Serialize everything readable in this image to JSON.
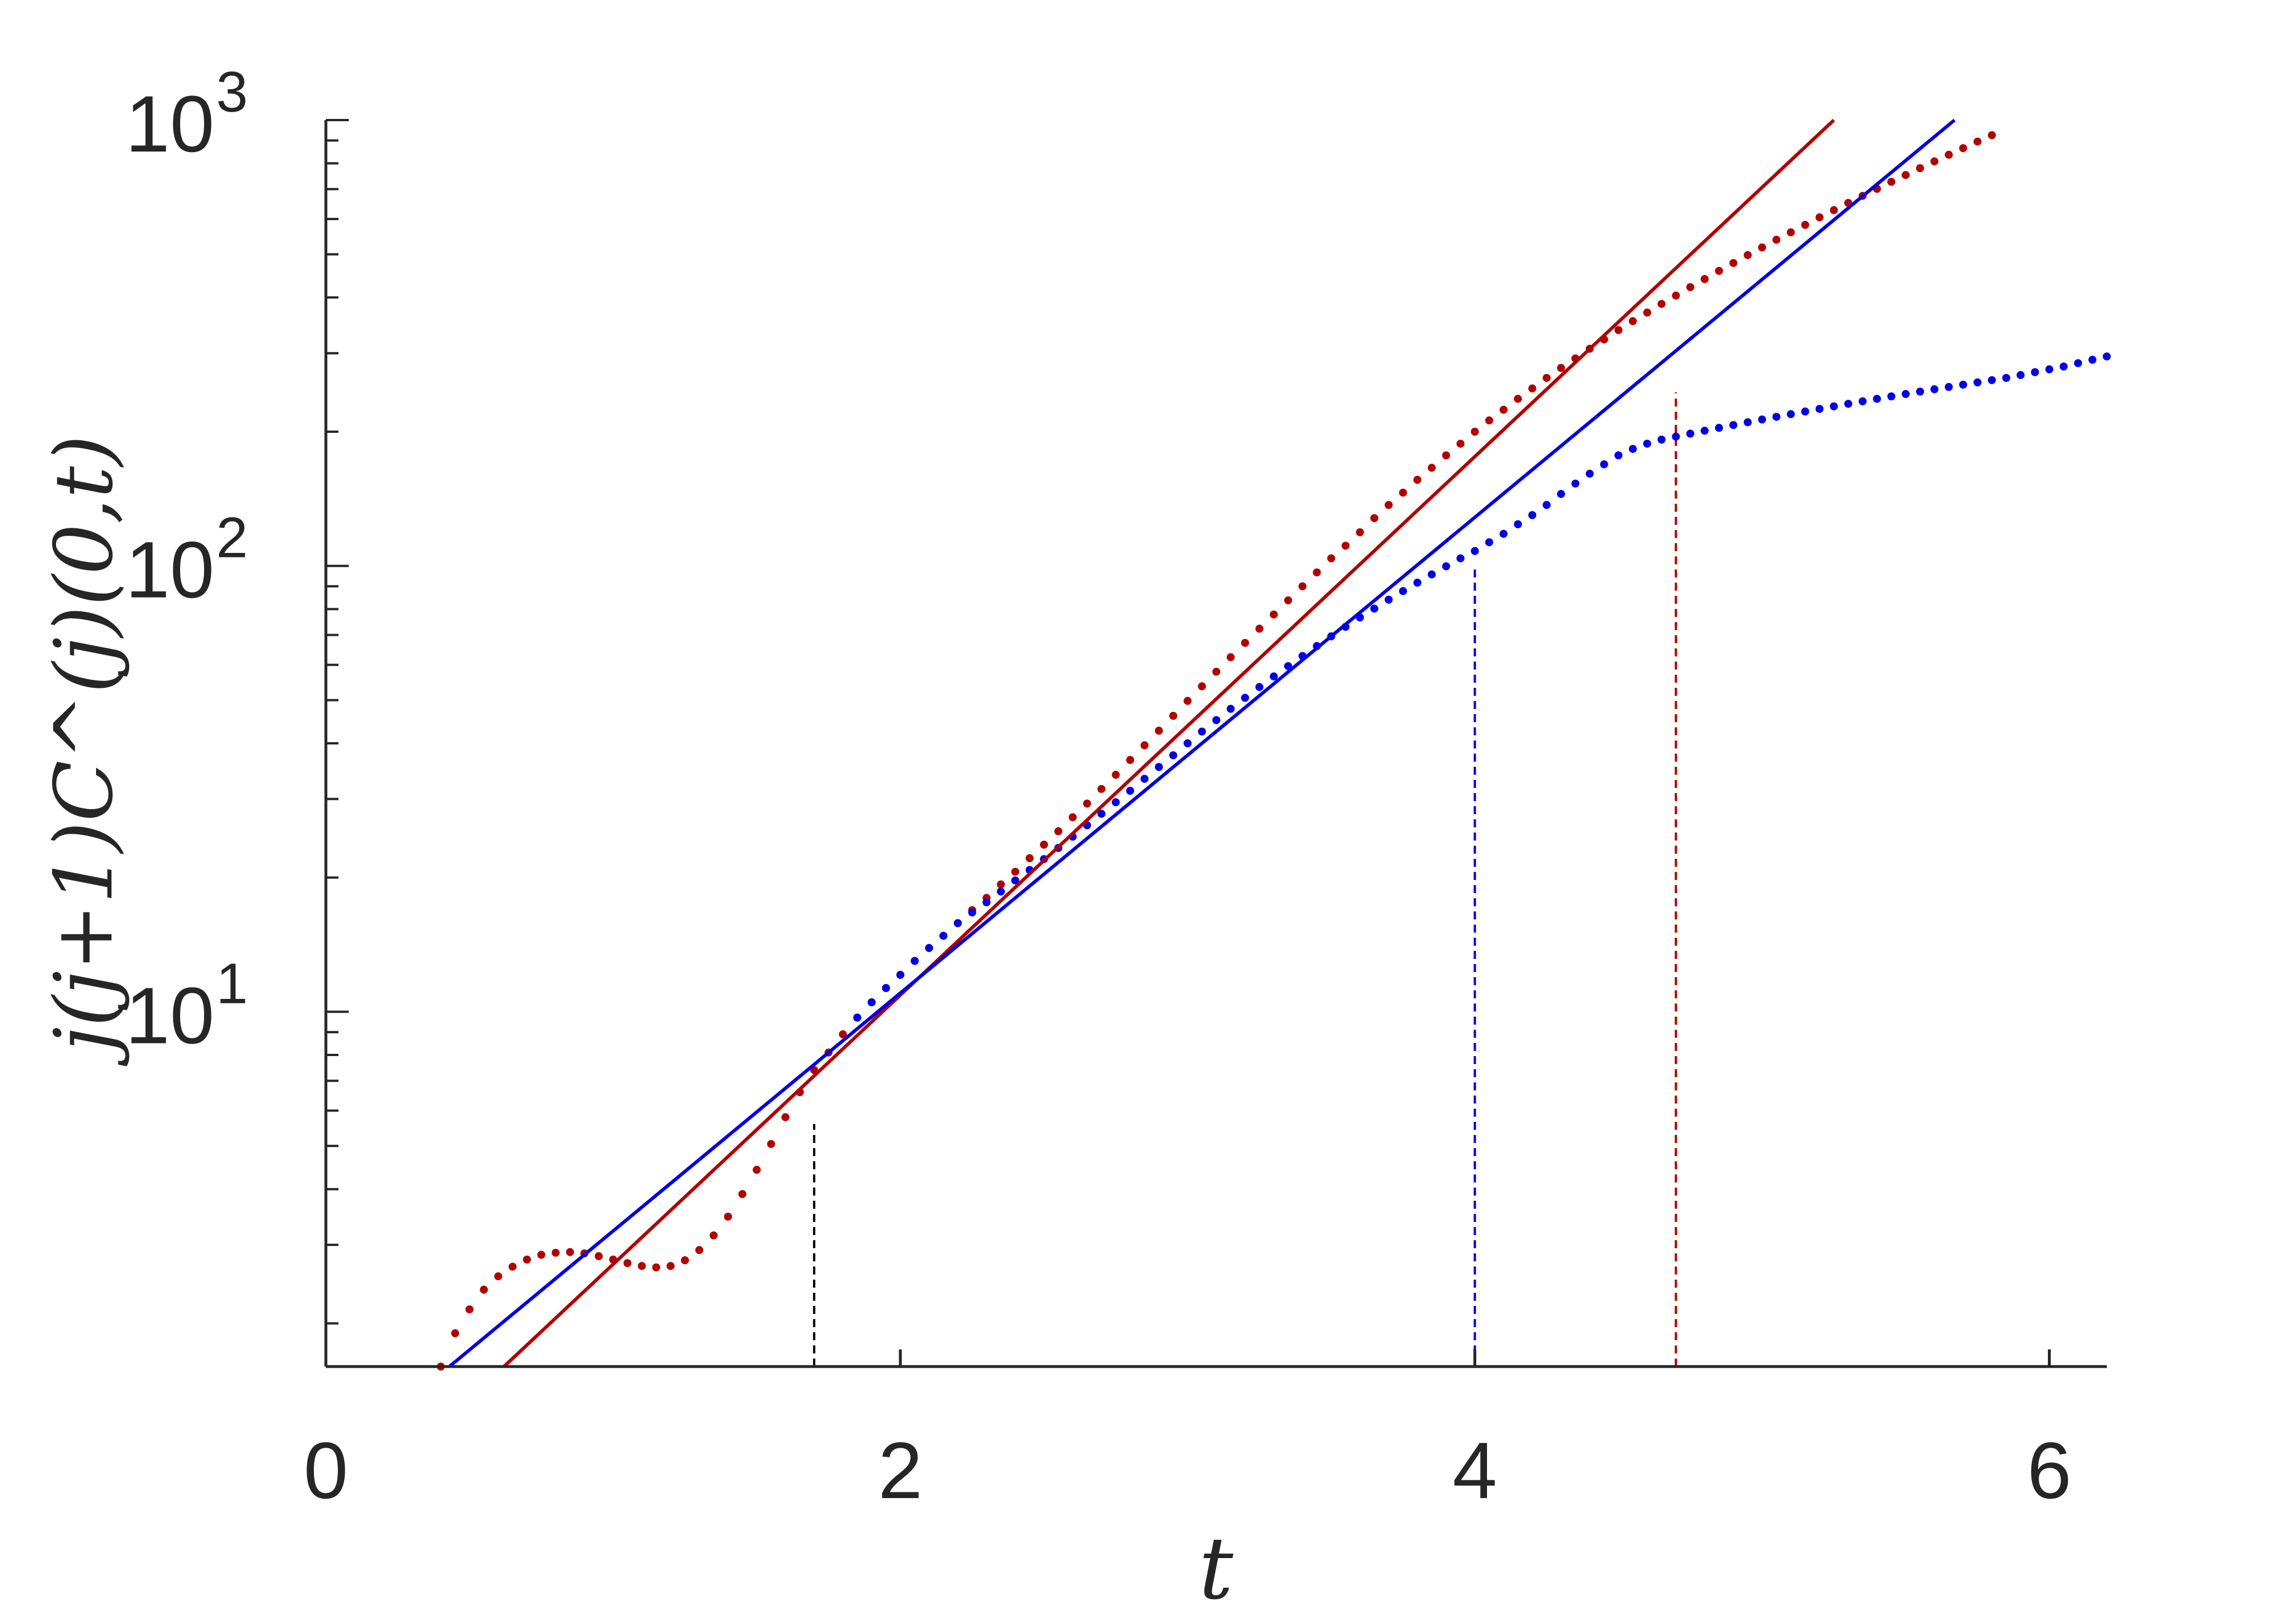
{
  "chart_data": {
    "type": "scatter",
    "title": "",
    "xlabel": "t",
    "ylabel": "j(j+1)C^(j)(0,t)",
    "xlim": [
      0,
      6.2
    ],
    "ylim": [
      1.6,
      1000
    ],
    "yscale": "log",
    "grid": false,
    "legend": "none",
    "x_ticks": [
      0,
      2,
      4,
      6
    ],
    "x_tick_labels": [
      "0",
      "2",
      "4",
      "6"
    ],
    "y_ticks": [
      10,
      100,
      1000
    ],
    "y_tick_labels": [
      {
        "base": "10",
        "exp": "1"
      },
      {
        "base": "10",
        "exp": "2"
      },
      {
        "base": "10",
        "exp": "3"
      }
    ],
    "series": [
      {
        "kind": "dotted",
        "color": "#b30000",
        "points": [
          [
            0.4,
            1.6
          ],
          [
            0.45,
            1.9
          ],
          [
            0.5,
            2.15
          ],
          [
            0.55,
            2.38
          ],
          [
            0.6,
            2.55
          ],
          [
            0.65,
            2.68
          ],
          [
            0.7,
            2.78
          ],
          [
            0.75,
            2.85
          ],
          [
            0.8,
            2.88
          ],
          [
            0.85,
            2.89
          ],
          [
            0.9,
            2.87
          ],
          [
            0.95,
            2.83
          ],
          [
            1.0,
            2.78
          ],
          [
            1.05,
            2.73
          ],
          [
            1.1,
            2.69
          ],
          [
            1.15,
            2.67
          ],
          [
            1.2,
            2.69
          ],
          [
            1.25,
            2.77
          ],
          [
            1.3,
            2.92
          ],
          [
            1.35,
            3.15
          ],
          [
            1.4,
            3.47
          ],
          [
            1.45,
            3.9
          ],
          [
            1.5,
            4.42
          ],
          [
            1.55,
            5.05
          ],
          [
            1.6,
            5.8
          ],
          [
            1.65,
            6.6
          ],
          [
            1.7,
            7.4
          ],
          [
            1.75,
            8.1
          ],
          [
            1.8,
            8.9
          ],
          [
            1.85,
            9.7
          ],
          [
            1.9,
            10.5
          ],
          [
            1.95,
            11.3
          ],
          [
            2.0,
            12.1
          ],
          [
            2.05,
            13.0
          ],
          [
            2.1,
            13.9
          ],
          [
            2.15,
            14.8
          ],
          [
            2.2,
            15.8
          ],
          [
            2.25,
            16.9
          ],
          [
            2.3,
            18.0
          ],
          [
            2.35,
            19.3
          ],
          [
            2.4,
            20.6
          ],
          [
            2.45,
            22.1
          ],
          [
            2.5,
            23.7
          ],
          [
            2.55,
            25.4
          ],
          [
            2.6,
            27.3
          ],
          [
            2.65,
            29.3
          ],
          [
            2.7,
            31.6
          ],
          [
            2.75,
            34.0
          ],
          [
            2.8,
            36.7
          ],
          [
            2.85,
            39.6
          ],
          [
            2.9,
            42.7
          ],
          [
            2.95,
            46.1
          ],
          [
            3.0,
            49.8
          ],
          [
            3.05,
            53.7
          ],
          [
            3.1,
            57.9
          ],
          [
            3.15,
            62.4
          ],
          [
            3.2,
            67.2
          ],
          [
            3.25,
            72.3
          ],
          [
            3.3,
            77.8
          ],
          [
            3.35,
            83.7
          ],
          [
            3.4,
            90.0
          ],
          [
            3.45,
            96.7
          ],
          [
            3.5,
            104
          ],
          [
            3.55,
            111
          ],
          [
            3.6,
            119
          ],
          [
            3.65,
            128
          ],
          [
            3.7,
            137
          ],
          [
            3.75,
            146
          ],
          [
            3.8,
            156
          ],
          [
            3.85,
            166
          ],
          [
            3.9,
            177
          ],
          [
            3.95,
            188
          ],
          [
            4.0,
            200
          ],
          [
            4.05,
            212
          ],
          [
            4.1,
            224
          ],
          [
            4.15,
            237
          ],
          [
            4.2,
            250
          ],
          [
            4.25,
            264
          ],
          [
            4.3,
            278
          ],
          [
            4.35,
            292
          ],
          [
            4.4,
            307
          ],
          [
            4.45,
            322
          ],
          [
            4.5,
            338
          ],
          [
            4.55,
            354
          ],
          [
            4.6,
            370
          ],
          [
            4.65,
            387
          ],
          [
            4.7,
            404
          ],
          [
            4.75,
            422
          ],
          [
            4.8,
            440
          ],
          [
            4.85,
            459
          ],
          [
            4.9,
            478
          ],
          [
            4.95,
            498
          ],
          [
            5.0,
            518
          ],
          [
            5.05,
            539
          ],
          [
            5.1,
            560
          ],
          [
            5.15,
            582
          ],
          [
            5.2,
            605
          ],
          [
            5.25,
            628
          ],
          [
            5.3,
            652
          ],
          [
            5.35,
            676
          ],
          [
            5.4,
            701
          ],
          [
            5.45,
            727
          ],
          [
            5.5,
            753
          ],
          [
            5.55,
            780
          ],
          [
            5.6,
            808
          ],
          [
            5.65,
            836
          ],
          [
            5.7,
            865
          ],
          [
            5.75,
            895
          ],
          [
            5.8,
            925
          ]
        ]
      },
      {
        "kind": "dotted",
        "color": "#0000e6",
        "points": [
          [
            1.85,
            9.7
          ],
          [
            1.9,
            10.5
          ],
          [
            1.95,
            11.3
          ],
          [
            2.0,
            12.1
          ],
          [
            2.05,
            13.0
          ],
          [
            2.1,
            13.9
          ],
          [
            2.15,
            14.8
          ],
          [
            2.2,
            15.8
          ],
          [
            2.25,
            16.7
          ],
          [
            2.3,
            17.6
          ],
          [
            2.35,
            18.6
          ],
          [
            2.4,
            19.7
          ],
          [
            2.45,
            20.8
          ],
          [
            2.5,
            22.0
          ],
          [
            2.55,
            23.3
          ],
          [
            2.6,
            24.7
          ],
          [
            2.65,
            26.2
          ],
          [
            2.7,
            27.8
          ],
          [
            2.75,
            29.5
          ],
          [
            2.8,
            31.3
          ],
          [
            2.85,
            33.3
          ],
          [
            2.9,
            35.4
          ],
          [
            2.95,
            37.6
          ],
          [
            3.0,
            40.0
          ],
          [
            3.05,
            42.5
          ],
          [
            3.1,
            45.1
          ],
          [
            3.15,
            47.8
          ],
          [
            3.2,
            50.6
          ],
          [
            3.25,
            53.5
          ],
          [
            3.3,
            56.5
          ],
          [
            3.35,
            59.6
          ],
          [
            3.4,
            62.8
          ],
          [
            3.45,
            66.1
          ],
          [
            3.5,
            69.5
          ],
          [
            3.55,
            73.0
          ],
          [
            3.6,
            76.6
          ],
          [
            3.65,
            80.2
          ],
          [
            3.7,
            84.0
          ],
          [
            3.75,
            87.8
          ],
          [
            3.8,
            91.7
          ],
          [
            3.85,
            95.7
          ],
          [
            3.9,
            99.8
          ],
          [
            3.95,
            104
          ],
          [
            4.0,
            108
          ],
          [
            4.05,
            113
          ],
          [
            4.1,
            118
          ],
          [
            4.15,
            124
          ],
          [
            4.2,
            130
          ],
          [
            4.25,
            137
          ],
          [
            4.3,
            145
          ],
          [
            4.35,
            153
          ],
          [
            4.4,
            161
          ],
          [
            4.45,
            169
          ],
          [
            4.5,
            177
          ],
          [
            4.55,
            183
          ],
          [
            4.6,
            188
          ],
          [
            4.65,
            192
          ],
          [
            4.7,
            195
          ],
          [
            4.75,
            198
          ],
          [
            4.8,
            201
          ],
          [
            4.85,
            204
          ],
          [
            4.9,
            207
          ],
          [
            4.95,
            210
          ],
          [
            5.0,
            213
          ],
          [
            5.05,
            216
          ],
          [
            5.1,
            219
          ],
          [
            5.15,
            222
          ],
          [
            5.2,
            225
          ],
          [
            5.25,
            228
          ],
          [
            5.3,
            231
          ],
          [
            5.35,
            234
          ],
          [
            5.4,
            237
          ],
          [
            5.45,
            240
          ],
          [
            5.5,
            243
          ],
          [
            5.55,
            246
          ],
          [
            5.6,
            249
          ],
          [
            5.65,
            252
          ],
          [
            5.7,
            255
          ],
          [
            5.75,
            258
          ],
          [
            5.8,
            261
          ],
          [
            5.85,
            264
          ],
          [
            5.9,
            268
          ],
          [
            5.95,
            272
          ],
          [
            6.0,
            276
          ],
          [
            6.05,
            280
          ],
          [
            6.1,
            285
          ],
          [
            6.15,
            290
          ],
          [
            6.2,
            295
          ]
        ]
      },
      {
        "kind": "line",
        "color": "#b30000",
        "points": [
          [
            0.62,
            1.6
          ],
          [
            5.25,
            1000
          ]
        ]
      },
      {
        "kind": "line",
        "color": "#0000e6",
        "points": [
          [
            0.43,
            1.6
          ],
          [
            5.67,
            1000
          ]
        ]
      }
    ],
    "vlines": [
      {
        "x": 1.7,
        "y_top": 5.6,
        "color": "#000000"
      },
      {
        "x": 4.0,
        "y_top": 100,
        "color": "#0000e6"
      },
      {
        "x": 4.7,
        "y_top": 245,
        "color": "#b30000"
      }
    ]
  }
}
